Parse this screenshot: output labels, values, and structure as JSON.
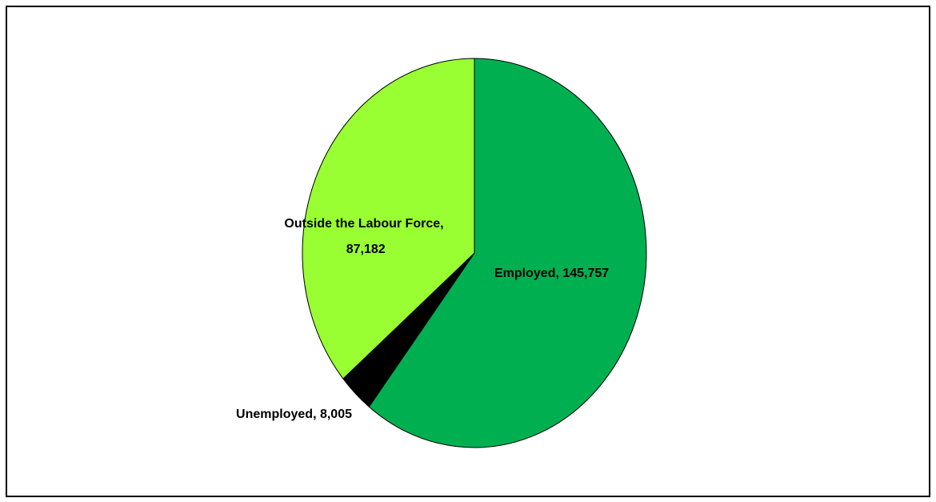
{
  "chart_data": {
    "type": "pie",
    "value_labels": [
      "Employed,  145,757",
      "Unemployed,  8,005",
      "Outside the Labour Force,  87,182"
    ],
    "values": [
      145757,
      8005,
      87182
    ],
    "colors": [
      "#00b050",
      "#000000",
      "#99ff33"
    ]
  }
}
